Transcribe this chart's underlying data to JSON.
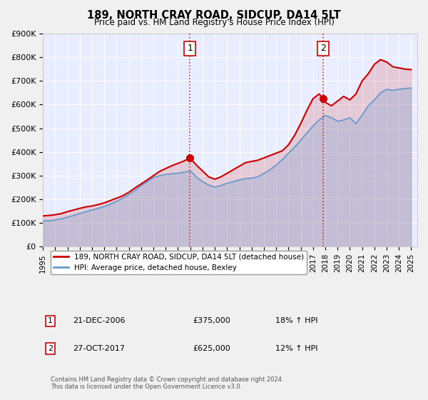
{
  "title": "189, NORTH CRAY ROAD, SIDCUP, DA14 5LT",
  "subtitle": "Price paid vs. HM Land Registry's House Price Index (HPI)",
  "title_fontsize": 11,
  "subtitle_fontsize": 9,
  "ylabel": "",
  "ylim": [
    0,
    900000
  ],
  "yticks": [
    0,
    100000,
    200000,
    300000,
    400000,
    500000,
    600000,
    700000,
    800000,
    900000
  ],
  "ytick_labels": [
    "£0",
    "£100K",
    "£200K",
    "£300K",
    "£400K",
    "£500K",
    "£600K",
    "£700K",
    "£800K",
    "£900K"
  ],
  "xlim_start": 1995.0,
  "xlim_end": 2025.5,
  "xticks": [
    1995,
    1996,
    1997,
    1998,
    1999,
    2000,
    2001,
    2002,
    2003,
    2004,
    2005,
    2006,
    2007,
    2008,
    2009,
    2010,
    2011,
    2012,
    2013,
    2014,
    2015,
    2016,
    2017,
    2018,
    2019,
    2020,
    2021,
    2022,
    2023,
    2024,
    2025
  ],
  "bg_color": "#f0f4ff",
  "plot_bg_color": "#e8eeff",
  "grid_color": "#ffffff",
  "red_line_color": "#cc0000",
  "blue_line_color": "#6699cc",
  "marker1_x": 2006.97,
  "marker1_y": 375000,
  "marker2_x": 2017.82,
  "marker2_y": 625000,
  "vline1_x": 2006.97,
  "vline2_x": 2017.82,
  "legend_label1": "189, NORTH CRAY ROAD, SIDCUP, DA14 5LT (detached house)",
  "legend_label2": "HPI: Average price, detached house, Bexley",
  "annot1_label": "1",
  "annot2_label": "2",
  "table_row1": [
    "1",
    "21-DEC-2006",
    "£375,000",
    "18% ↑ HPI"
  ],
  "table_row2": [
    "2",
    "27-OCT-2017",
    "£625,000",
    "12% ↑ HPI"
  ],
  "footer": "Contains HM Land Registry data © Crown copyright and database right 2024.\nThis data is licensed under the Open Government Licence v3.0.",
  "red_x": [
    1995.0,
    1995.5,
    1996.0,
    1996.5,
    1997.0,
    1997.5,
    1998.0,
    1998.5,
    1999.0,
    1999.5,
    2000.0,
    2000.5,
    2001.0,
    2001.5,
    2002.0,
    2002.5,
    2003.0,
    2003.5,
    2004.0,
    2004.5,
    2005.0,
    2005.5,
    2006.0,
    2006.5,
    2006.97,
    2007.5,
    2008.0,
    2008.5,
    2009.0,
    2009.5,
    2010.0,
    2010.5,
    2011.0,
    2011.5,
    2012.0,
    2012.5,
    2013.0,
    2013.5,
    2014.0,
    2014.5,
    2015.0,
    2015.5,
    2016.0,
    2016.5,
    2017.0,
    2017.5,
    2017.82,
    2018.0,
    2018.5,
    2019.0,
    2019.5,
    2020.0,
    2020.5,
    2021.0,
    2021.5,
    2022.0,
    2022.5,
    2023.0,
    2023.5,
    2024.0,
    2024.5,
    2025.0
  ],
  "red_y": [
    130000,
    132000,
    135000,
    140000,
    148000,
    155000,
    162000,
    168000,
    172000,
    178000,
    185000,
    195000,
    205000,
    215000,
    230000,
    248000,
    265000,
    282000,
    300000,
    318000,
    330000,
    342000,
    352000,
    362000,
    375000,
    345000,
    320000,
    295000,
    285000,
    295000,
    310000,
    325000,
    340000,
    355000,
    360000,
    365000,
    375000,
    385000,
    395000,
    405000,
    430000,
    470000,
    520000,
    575000,
    625000,
    645000,
    625000,
    610000,
    595000,
    615000,
    635000,
    620000,
    645000,
    700000,
    730000,
    770000,
    790000,
    780000,
    760000,
    755000,
    750000,
    748000
  ],
  "blue_x": [
    1995.0,
    1995.5,
    1996.0,
    1996.5,
    1997.0,
    1997.5,
    1998.0,
    1998.5,
    1999.0,
    1999.5,
    2000.0,
    2000.5,
    2001.0,
    2001.5,
    2002.0,
    2002.5,
    2003.0,
    2003.5,
    2004.0,
    2004.5,
    2005.0,
    2005.5,
    2006.0,
    2006.5,
    2007.0,
    2007.5,
    2008.0,
    2008.5,
    2009.0,
    2009.5,
    2010.0,
    2010.5,
    2011.0,
    2011.5,
    2012.0,
    2012.5,
    2013.0,
    2013.5,
    2014.0,
    2014.5,
    2015.0,
    2015.5,
    2016.0,
    2016.5,
    2017.0,
    2017.5,
    2018.0,
    2018.5,
    2019.0,
    2019.5,
    2020.0,
    2020.5,
    2021.0,
    2021.5,
    2022.0,
    2022.5,
    2023.0,
    2023.5,
    2024.0,
    2024.5,
    2025.0
  ],
  "blue_y": [
    108000,
    110000,
    113000,
    118000,
    125000,
    132000,
    140000,
    148000,
    155000,
    162000,
    170000,
    180000,
    192000,
    205000,
    220000,
    238000,
    258000,
    275000,
    292000,
    300000,
    305000,
    308000,
    310000,
    315000,
    320000,
    295000,
    275000,
    260000,
    252000,
    258000,
    268000,
    275000,
    282000,
    288000,
    290000,
    295000,
    310000,
    325000,
    345000,
    368000,
    395000,
    420000,
    450000,
    480000,
    510000,
    535000,
    555000,
    545000,
    530000,
    535000,
    545000,
    520000,
    555000,
    595000,
    620000,
    650000,
    665000,
    660000,
    665000,
    668000,
    670000
  ]
}
